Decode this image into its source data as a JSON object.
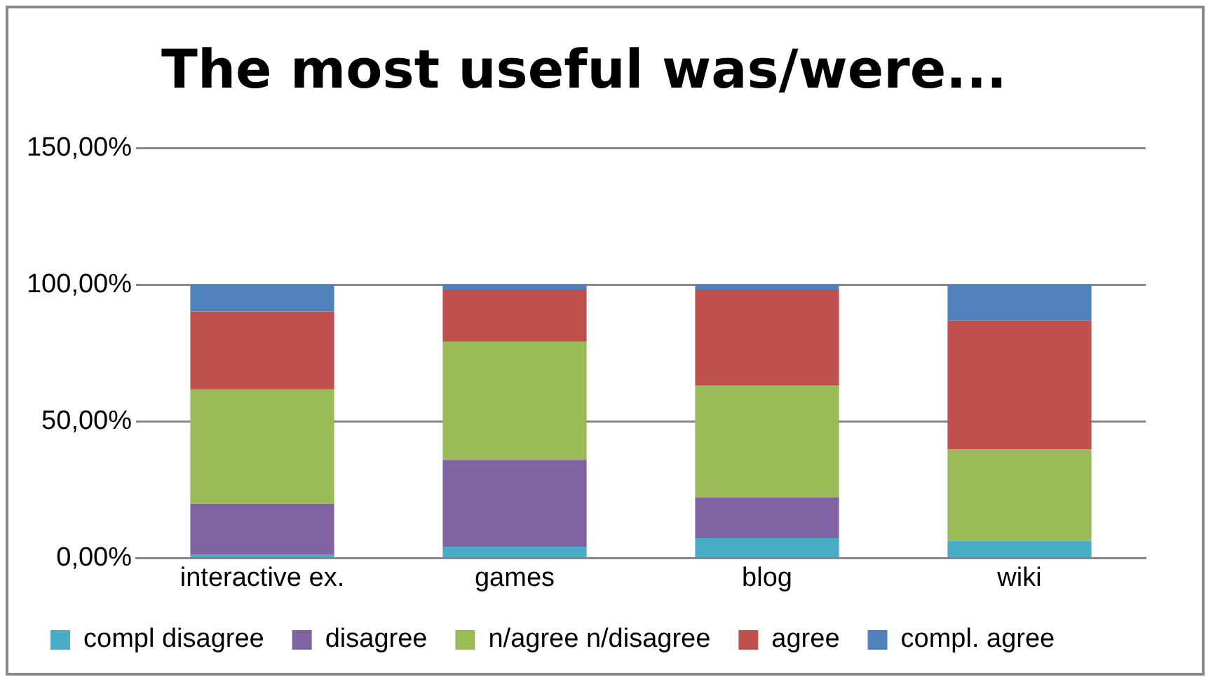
{
  "chart_data": {
    "type": "bar",
    "stacked": true,
    "title": "The most useful was/were...",
    "categories": [
      "interactive ex.",
      "games",
      "blog",
      "wiki"
    ],
    "series": [
      {
        "name": "compl disagree",
        "color": "#4bacc6",
        "values": [
          1.4,
          4.2,
          7.3,
          6.3
        ]
      },
      {
        "name": "disagree",
        "color": "#8064a2",
        "values": [
          18.5,
          31.7,
          15.0,
          0
        ]
      },
      {
        "name": "n/agree n/disagree",
        "color": "#9bbb59",
        "values": [
          41.8,
          43.2,
          40.8,
          33.4
        ]
      },
      {
        "name": "agree",
        "color": "#c0504d",
        "values": [
          28.5,
          19.2,
          35.2,
          47.1
        ]
      },
      {
        "name": "compl. agree",
        "color": "#4f81bd",
        "values": [
          9.8,
          1.7,
          1.7,
          13.2
        ]
      }
    ],
    "ylim": [
      0,
      150
    ],
    "yticks": [
      {
        "value": 0,
        "label": "0,00%"
      },
      {
        "value": 50,
        "label": "50,00%"
      },
      {
        "value": 100,
        "label": "100,00%"
      },
      {
        "value": 150,
        "label": "150,00%"
      }
    ],
    "grid": "y",
    "legend": "bottom"
  }
}
